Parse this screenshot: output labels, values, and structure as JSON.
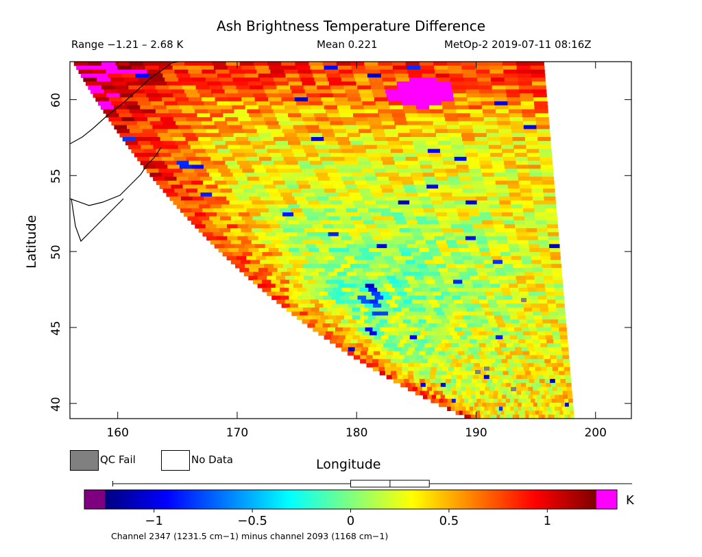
{
  "header": {
    "title": "Ash Brightness Temperature Difference",
    "range": "Range −1.21 – 2.68 K",
    "mean": "Mean 0.221",
    "satellite": "MetOp-2 2019-07-11 08:16Z"
  },
  "chart_data": {
    "type": "heatmap",
    "title": "Ash Brightness Temperature Difference",
    "xlabel": "Longitude",
    "ylabel": "Latitude",
    "xlim": [
      156,
      203
    ],
    "ylim": [
      39,
      62.5
    ],
    "xticks": [
      160,
      170,
      180,
      190,
      200
    ],
    "yticks": [
      40,
      45,
      50,
      55,
      60
    ],
    "value_range": [
      -1.21,
      2.68
    ],
    "mean": 0.221,
    "units": "K",
    "colorbar": {
      "ticks": [
        -1,
        -0.5,
        0,
        0.5,
        1
      ],
      "tick_labels": [
        "−1",
        "−0.5",
        "0",
        "0.5",
        "1"
      ],
      "vmin": -1.25,
      "vmax": 1.25,
      "unit_label": "K",
      "underflow_color": "#7e0080",
      "overflow_color": "#ff00ff",
      "stops": [
        "#00007f",
        "#0000ff",
        "#007fff",
        "#00ffff",
        "#7fff7f",
        "#ffff00",
        "#ff7f00",
        "#ff0000",
        "#7f0000"
      ],
      "boxplot": {
        "whisker_low": -1.21,
        "q1": 0.0,
        "median": 0.2,
        "q3": 0.4,
        "whisker_high": 2.68
      }
    },
    "features": [
      {
        "label": "swath interior mean anomaly",
        "value": 0.221
      },
      {
        "label": "overflow region near 184E 61N",
        "value": 2.68
      },
      {
        "label": "low-value cluster near 181E 47N",
        "value": -1.21
      }
    ]
  },
  "legend": {
    "qc_fail": "QC Fail",
    "qc_fail_color": "#808080",
    "no_data": "No Data",
    "no_data_color": "#ffffff"
  },
  "footnote": "Channel 2347 (1231.5 cm−1) minus channel 2093 (1168 cm−1)"
}
